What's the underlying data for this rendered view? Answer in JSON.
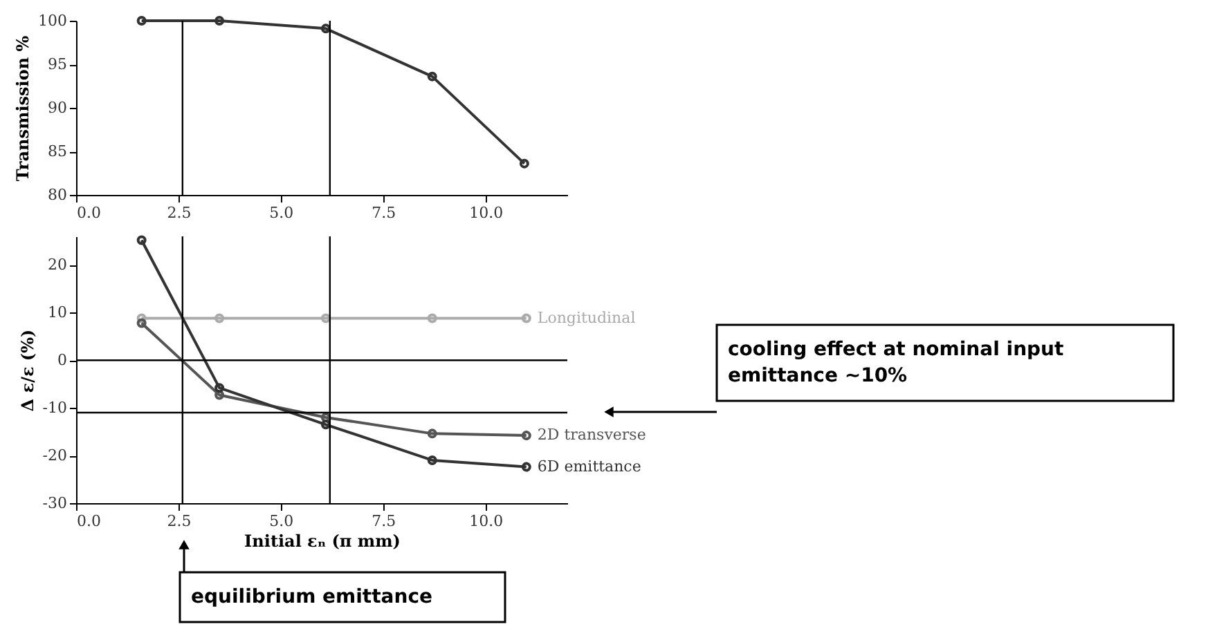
{
  "chart_data": [
    {
      "type": "line",
      "ylabel": "Transmission %",
      "x": [
        1.6,
        3.5,
        6.1,
        8.7,
        10.95
      ],
      "xlim": [
        0,
        12
      ],
      "xticks": [
        {
          "value": 0,
          "label": "0.0"
        },
        {
          "value": 2.5,
          "label": "2.5"
        },
        {
          "value": 5,
          "label": "5.0"
        },
        {
          "value": 7.5,
          "label": "7.5"
        },
        {
          "value": 10,
          "label": "10.0"
        }
      ],
      "ylim": [
        80,
        100
      ],
      "yticks": [
        80,
        85,
        90,
        95,
        100
      ],
      "series": [
        {
          "color": "#333333",
          "values": [
            100,
            100,
            99.1,
            93.6,
            83.6
          ]
        }
      ],
      "ref_lines": [
        {
          "axis": "x",
          "value": 2.6,
          "color": "#000000"
        },
        {
          "axis": "x",
          "value": 6.2,
          "color": "#000000"
        }
      ],
      "marker": "circle",
      "grid": false,
      "legend": false
    },
    {
      "type": "line",
      "xlabel": "Initial εₙ   (π mm)",
      "ylabel": "Δ ε/ε   (%)",
      "xlim": [
        0,
        12
      ],
      "xticks": [
        {
          "value": 0,
          "label": "0.0"
        },
        {
          "value": 2.5,
          "label": "2.5"
        },
        {
          "value": 5,
          "label": "5.0"
        },
        {
          "value": 7.5,
          "label": "7.5"
        },
        {
          "value": 10,
          "label": "10.0"
        }
      ],
      "ylim": [
        -30,
        26
      ],
      "yticks": [
        -30,
        -20,
        -10,
        0,
        10,
        20
      ],
      "series": [
        {
          "name": "Longitudinal",
          "color": "#aaaaaa",
          "x": [
            1.6,
            3.5,
            6.1,
            8.7,
            11.0
          ],
          "values": [
            8.8,
            8.8,
            8.8,
            8.8,
            8.8
          ]
        },
        {
          "name": "2D transverse",
          "color": "#555555",
          "x": [
            1.6,
            3.5,
            6.1,
            8.7,
            11.0
          ],
          "values": [
            7.8,
            -7.3,
            -12,
            -15.4,
            -15.8
          ]
        },
        {
          "name": "6D emittance",
          "color": "#333333",
          "x": [
            1.6,
            3.5,
            6.1,
            8.7,
            11.0
          ],
          "values": [
            25.2,
            -5.8,
            -13.5,
            -21,
            -22.4
          ]
        }
      ],
      "ref_lines": [
        {
          "axis": "y",
          "value": 0,
          "color": "#000000"
        },
        {
          "axis": "y",
          "value": -11,
          "color": "#000000"
        },
        {
          "axis": "x",
          "value": 2.6,
          "color": "#000000"
        },
        {
          "axis": "x",
          "value": 6.2,
          "color": "#000000"
        }
      ],
      "annotations": [
        "cooling effect at nominal input emittance ~10%",
        "equilibrium emittance"
      ],
      "marker": "circle",
      "grid": false,
      "legend": false
    }
  ]
}
